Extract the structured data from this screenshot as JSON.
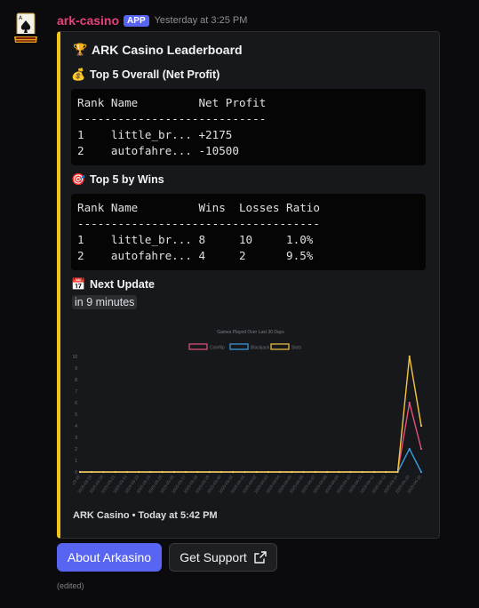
{
  "message": {
    "username": "ark-casino",
    "badge": "APP",
    "timestamp": "Yesterday at 3:25 PM",
    "edited": "(edited)"
  },
  "embed": {
    "accent_color": "#f0c419",
    "title_emoji": "🏆",
    "title": "ARK Casino Leaderboard",
    "fields": [
      {
        "emoji": "💰",
        "name": "Top 5 Overall (Net Profit)",
        "code": "Rank Name         Net Profit\n----------------------------\n1    little_br... +2175\n2    autofahre... -10500"
      },
      {
        "emoji": "🎯",
        "name": "Top 5 by Wins",
        "code": "Rank Name         Wins  Losses Ratio\n------------------------------------\n1    little_br... 8     10     1.0%\n2    autofahre... 4     2      9.5%"
      },
      {
        "emoji": "📅",
        "name": "Next Update",
        "value": "in 9 minutes"
      }
    ],
    "footer": "ARK Casino • Today at 5:42 PM"
  },
  "chart_data": {
    "type": "line",
    "title": "Games Played Over Last 30 Days",
    "legend_position": "top",
    "ylim": [
      0,
      10
    ],
    "yticks": [
      "0",
      "1",
      "2",
      "3",
      "4",
      "5",
      "6",
      "7",
      "8",
      "9",
      "10"
    ],
    "x": [
      "2025-03-18",
      "2025-03-19",
      "2025-03-20",
      "2025-03-21",
      "2025-03-22",
      "2025-03-23",
      "2025-03-24",
      "2025-03-25",
      "2025-03-26",
      "2025-03-27",
      "2025-03-28",
      "2025-03-29",
      "2025-03-30",
      "2025-03-31",
      "2025-04-01",
      "2025-04-02",
      "2025-04-03",
      "2025-04-04",
      "2025-04-05",
      "2025-04-06",
      "2025-04-07",
      "2025-04-08",
      "2025-04-09",
      "2025-04-10",
      "2025-04-11",
      "2025-04-12",
      "2025-04-13",
      "2025-04-14",
      "2025-04-15",
      "2025-04-16"
    ],
    "series": [
      {
        "name": "Coinflip",
        "color": "#e7517a",
        "values": [
          0,
          0,
          0,
          0,
          0,
          0,
          0,
          0,
          0,
          0,
          0,
          0,
          0,
          0,
          0,
          0,
          0,
          0,
          0,
          0,
          0,
          0,
          0,
          0,
          0,
          0,
          0,
          0,
          6,
          2
        ]
      },
      {
        "name": "Blackjack",
        "color": "#3a9ee4",
        "values": [
          0,
          0,
          0,
          0,
          0,
          0,
          0,
          0,
          0,
          0,
          0,
          0,
          0,
          0,
          0,
          0,
          0,
          0,
          0,
          0,
          0,
          0,
          0,
          0,
          0,
          0,
          0,
          0,
          2,
          0
        ]
      },
      {
        "name": "Slots",
        "color": "#f5c542",
        "values": [
          0,
          0,
          0,
          0,
          0,
          0,
          0,
          0,
          0,
          0,
          0,
          0,
          0,
          0,
          0,
          0,
          0,
          0,
          0,
          0,
          0,
          0,
          0,
          0,
          0,
          0,
          0,
          0,
          10,
          4
        ]
      }
    ]
  },
  "buttons": {
    "about_label": "About Arkasino",
    "support_label": "Get Support"
  },
  "icons": {
    "avatar": "ace-of-spades-logo-icon",
    "external_link": "external-link-icon"
  }
}
